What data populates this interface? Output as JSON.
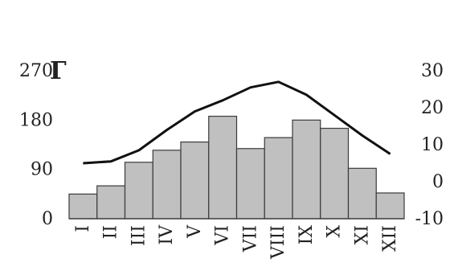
{
  "chart_data": {
    "type": "bar+line",
    "panel_label": "Г",
    "categories": [
      "I",
      "II",
      "III",
      "IV",
      "V",
      "VI",
      "VII",
      "VIII",
      "IX",
      "X",
      "XI",
      "XII"
    ],
    "bar_series": {
      "axis": "left",
      "values": [
        45,
        60,
        103,
        125,
        140,
        187,
        128,
        148,
        180,
        165,
        92,
        47
      ],
      "color": "#c0c0c0",
      "stroke": "#3a3a3a"
    },
    "line_series": {
      "axis": "right",
      "values": [
        5.0,
        5.5,
        8.5,
        14.0,
        19.0,
        22.0,
        25.5,
        27.0,
        23.5,
        18.0,
        12.5,
        7.5
      ],
      "color": "#111111"
    },
    "y_left": {
      "ticks": [
        0,
        90,
        180,
        270
      ],
      "lim": [
        0,
        270
      ]
    },
    "y_right": {
      "ticks": [
        -10,
        0,
        10,
        20,
        30
      ],
      "lim": [
        -10,
        30
      ]
    },
    "grid": false
  }
}
